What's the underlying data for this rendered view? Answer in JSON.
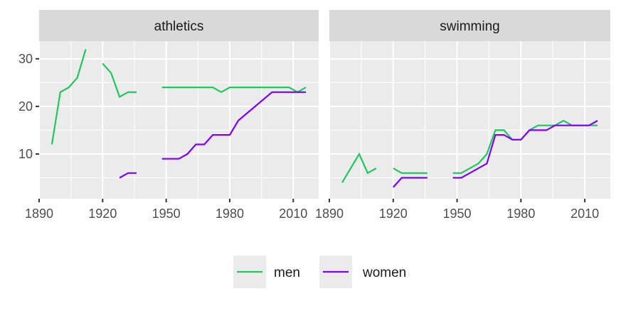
{
  "chart_data": {
    "type": "line",
    "facets": [
      {
        "title": "athletics",
        "series": [
          {
            "name": "men",
            "x": [
              1896,
              1900,
              1904,
              1908,
              1912,
              null,
              1920,
              1924,
              1928,
              1932,
              1936,
              null,
              1948,
              1952,
              1956,
              1960,
              1964,
              1968,
              1972,
              1976,
              1980,
              1984,
              1988,
              1992,
              1996,
              2000,
              2004,
              2008,
              2012,
              2016
            ],
            "y": [
              12,
              23,
              24,
              26,
              32,
              null,
              29,
              27,
              22,
              23,
              23,
              null,
              24,
              24,
              24,
              24,
              24,
              24,
              24,
              23,
              24,
              24,
              24,
              24,
              24,
              24,
              24,
              24,
              23,
              24
            ]
          },
          {
            "name": "women",
            "x": [
              1928,
              1932,
              1936,
              null,
              1948,
              1952,
              1956,
              1960,
              1964,
              1968,
              1972,
              1976,
              1980,
              1984,
              1988,
              1992,
              1996,
              2000,
              2004,
              2008,
              2012,
              2016
            ],
            "y": [
              5,
              6,
              6,
              null,
              9,
              9,
              9,
              10,
              12,
              12,
              14,
              14,
              14,
              17,
              18.5,
              20,
              21.5,
              23,
              23,
              23,
              23,
              23
            ]
          }
        ]
      },
      {
        "title": "swimming",
        "series": [
          {
            "name": "men",
            "x": [
              1896,
              1904,
              1908,
              1912,
              null,
              1920,
              1924,
              1928,
              1932,
              1936,
              null,
              1948,
              1952,
              1956,
              1960,
              1964,
              1968,
              1972,
              1976,
              1980,
              1984,
              1988,
              1992,
              1996,
              2000,
              2004,
              2008,
              2012,
              2016
            ],
            "y": [
              4,
              10,
              6,
              7,
              null,
              7,
              6,
              6,
              6,
              6,
              null,
              6,
              6,
              7,
              8,
              10,
              15,
              15,
              13,
              13,
              15,
              16,
              16,
              16,
              17,
              16,
              16,
              16,
              16
            ]
          },
          {
            "name": "women",
            "x": [
              1920,
              1924,
              1928,
              1932,
              1936,
              null,
              1948,
              1952,
              1956,
              1960,
              1964,
              1968,
              1972,
              1976,
              1980,
              1984,
              1988,
              1992,
              1996,
              2000,
              2004,
              2008,
              2012,
              2016
            ],
            "y": [
              3,
              5,
              5,
              5,
              5,
              null,
              5,
              5,
              6,
              7,
              8,
              14,
              14,
              13,
              13,
              15,
              15,
              15,
              16,
              16,
              16,
              16,
              16,
              17
            ]
          }
        ]
      }
    ],
    "xticks": [
      "1890",
      "1920",
      "1950",
      "1980",
      "2010"
    ],
    "yticks": [
      "10",
      "20",
      "30"
    ],
    "xlim": [
      1890,
      2022
    ],
    "ylim": [
      0.6,
      33.7
    ],
    "grid": true,
    "legend": "bottom",
    "colors": {
      "men": "#1ec85a",
      "women": "#7f00ff"
    }
  }
}
